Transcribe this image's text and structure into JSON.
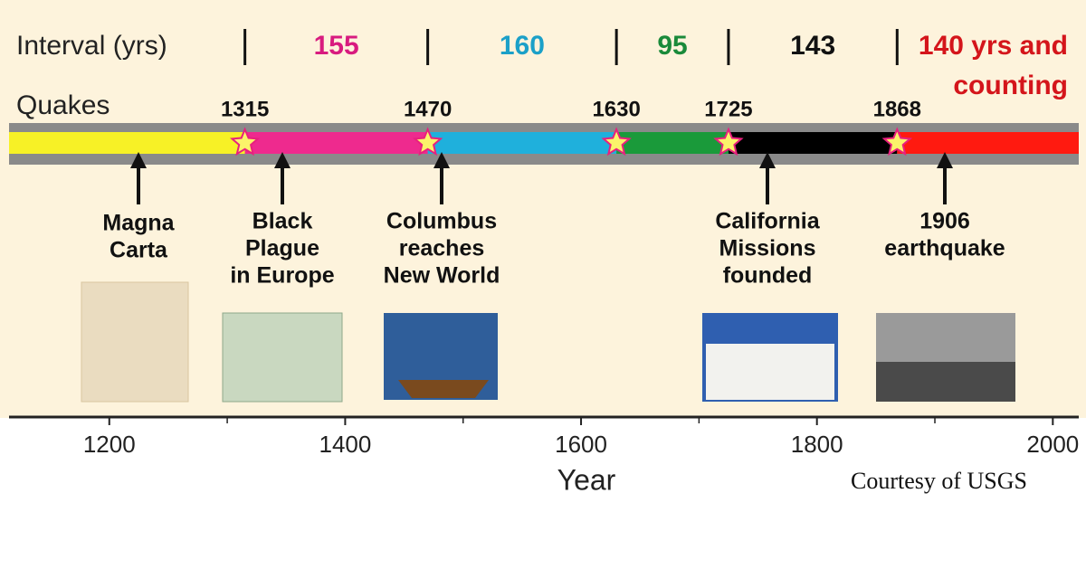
{
  "interval_label": "Interval (yrs)",
  "quakes_label": "Quakes",
  "intervals": [
    {
      "lines": [
        "155"
      ],
      "color": "#d81b7f"
    },
    {
      "lines": [
        "160"
      ],
      "color": "#1ba0c8"
    },
    {
      "lines": [
        "95"
      ],
      "color": "#1a8a3a"
    },
    {
      "lines": [
        "143"
      ],
      "color": "#111111"
    },
    {
      "lines": [
        "140 yrs and",
        "counting"
      ],
      "color": "#d4151b"
    }
  ],
  "quakes": [
    1315,
    1470,
    1630,
    1725,
    1868
  ],
  "segment_colors": [
    "#f7f126",
    "#ee2a8e",
    "#1fb0dc",
    "#1a9a3a",
    "#000000",
    "#ff1a10"
  ],
  "events": [
    {
      "lines": [
        "Magna",
        "Carta"
      ]
    },
    {
      "lines": [
        "Black",
        "Plague",
        "in Europe"
      ]
    },
    {
      "lines": [
        "Columbus",
        "reaches",
        "New World"
      ]
    },
    {
      "lines": [
        "California",
        "Missions",
        "founded"
      ]
    },
    {
      "lines": [
        "1906",
        "earthquake"
      ]
    }
  ],
  "axis": {
    "title": "Year",
    "xlim": [
      1115,
      2022
    ],
    "xticks": [
      1200,
      1400,
      1600,
      1800,
      2000
    ],
    "minor_xticks": [
      1300,
      1500,
      1700,
      1900
    ]
  },
  "credit": "Courtesy of USGS"
}
